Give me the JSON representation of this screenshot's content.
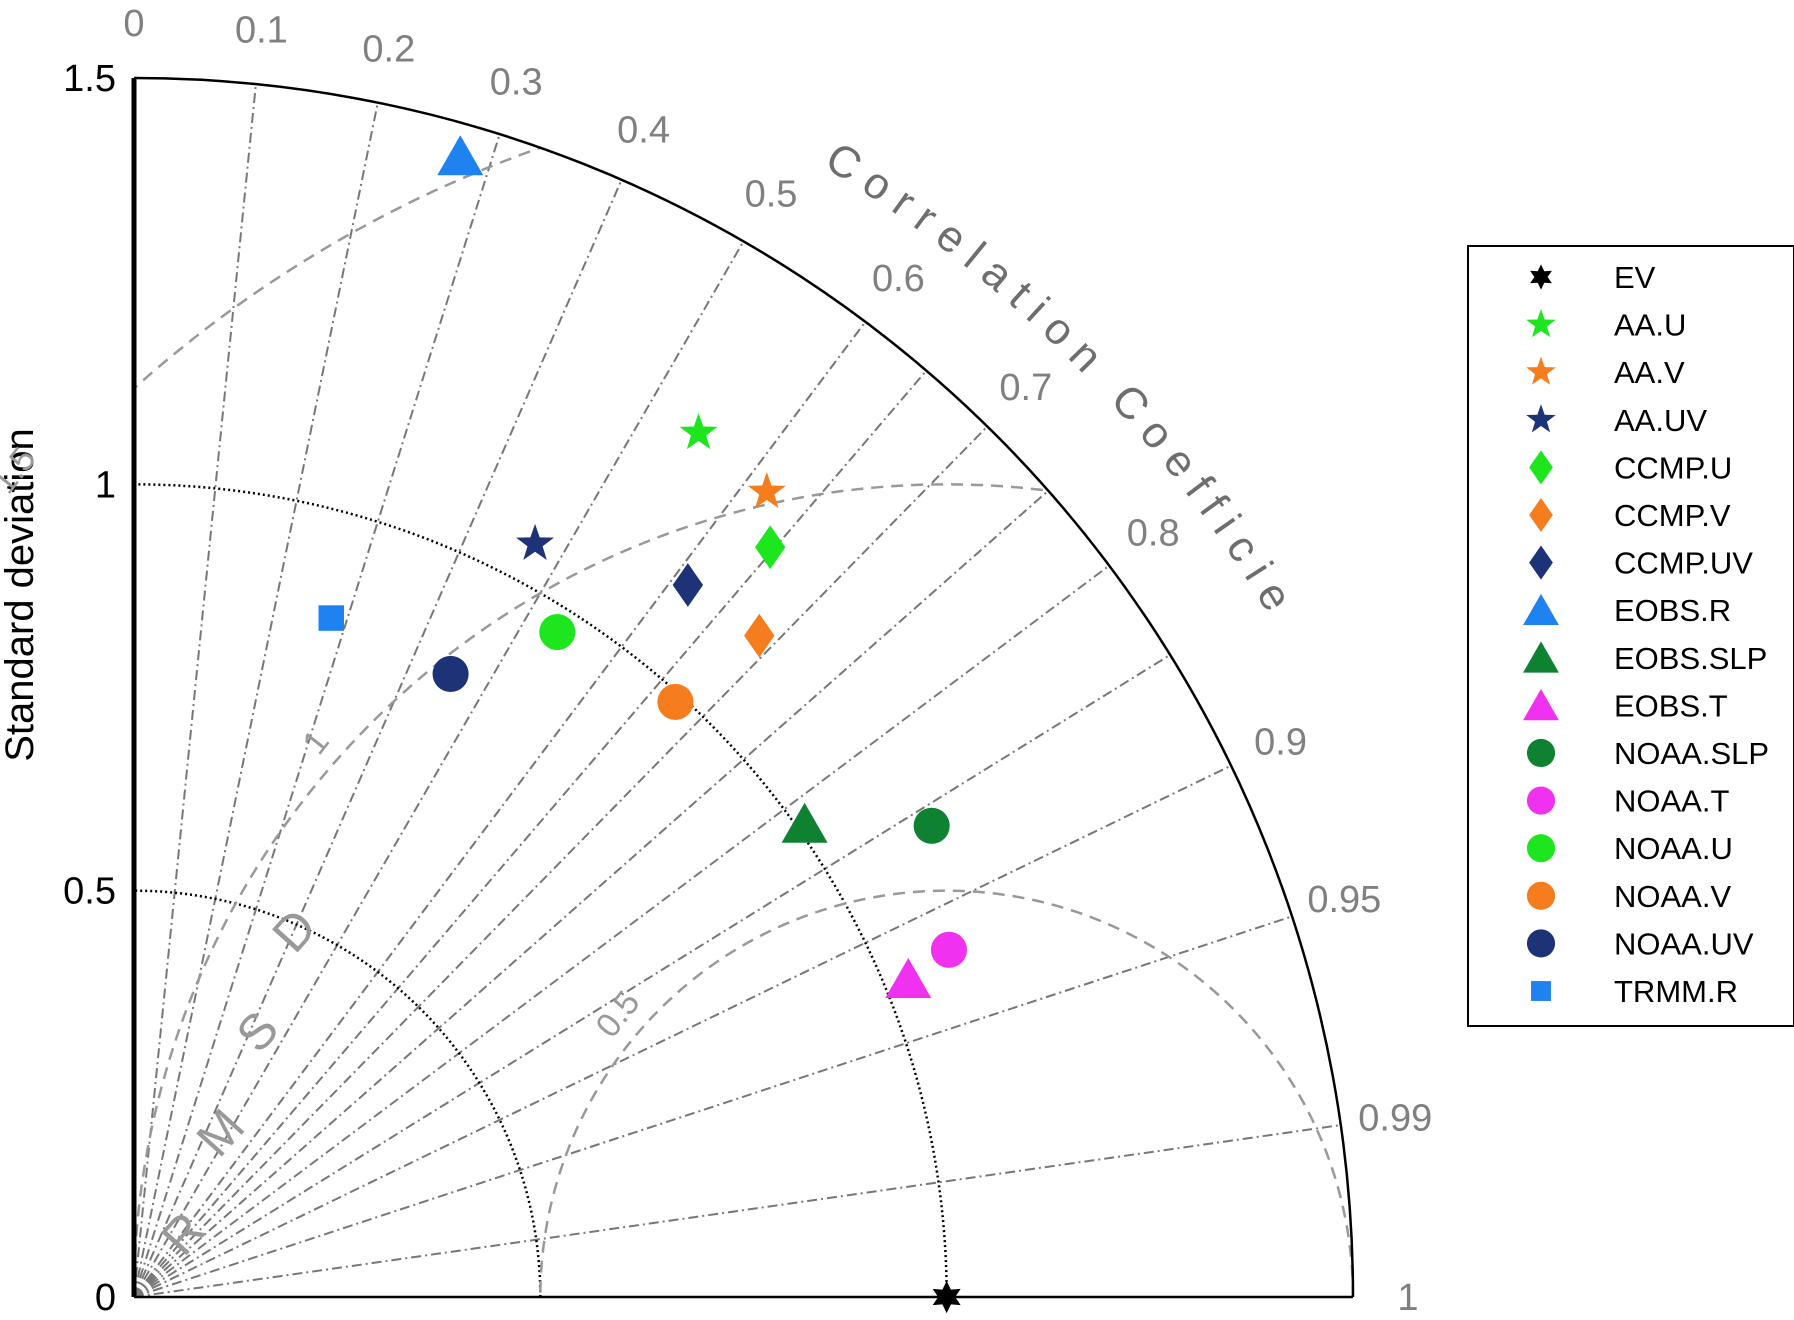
{
  "chart_data": {
    "type": "taylor-diagram",
    "ylabel": "Standard deviation",
    "correlation_label": "Correlation Coefficient",
    "rmsd_label": "RMSD",
    "std_ticks": [
      "0",
      "0.5",
      "1",
      "1.5"
    ],
    "std_tick_values": [
      0,
      0.5,
      1,
      1.5
    ],
    "std_max": 1.5,
    "reference_std": 1.0,
    "std_arcs": [
      0.5,
      1.0
    ],
    "correlation_ticks": [
      "0",
      "0.1",
      "0.2",
      "0.3",
      "0.4",
      "0.5",
      "0.6",
      "0.7",
      "0.8",
      "0.9",
      "0.95",
      "0.99",
      "1"
    ],
    "correlation_tick_values": [
      0,
      0.1,
      0.2,
      0.3,
      0.4,
      0.5,
      0.6,
      0.7,
      0.8,
      0.9,
      0.95,
      0.99,
      1
    ],
    "correlation_minor_lines": [
      0.65,
      0.75,
      0.85
    ],
    "rmsd_ticks": [
      "0.5",
      "1",
      "1.5"
    ],
    "rmsd_tick_values": [
      0.5,
      1.0,
      1.5
    ],
    "series": [
      {
        "name": "EV",
        "marker": "hexstar",
        "color": "#000000",
        "std": 1.0,
        "corr": 1.0
      },
      {
        "name": "AA.U",
        "marker": "star",
        "color": "#1ee61e",
        "std": 1.27,
        "corr": 0.547
      },
      {
        "name": "AA.V",
        "marker": "star",
        "color": "#f57d1e",
        "std": 1.26,
        "corr": 0.618
      },
      {
        "name": "AA.UV",
        "marker": "star",
        "color": "#1e3278",
        "std": 1.05,
        "corr": 0.47
      },
      {
        "name": "CCMP.U",
        "marker": "diamond",
        "color": "#1ee61e",
        "std": 1.21,
        "corr": 0.647
      },
      {
        "name": "CCMP.V",
        "marker": "diamond",
        "color": "#f57d1e",
        "std": 1.12,
        "corr": 0.687
      },
      {
        "name": "CCMP.UV",
        "marker": "diamond",
        "color": "#1e3278",
        "std": 1.11,
        "corr": 0.614
      },
      {
        "name": "EOBS.R",
        "marker": "triangle",
        "color": "#1e82f0",
        "std": 1.46,
        "corr": 0.275
      },
      {
        "name": "EOBS.SLP",
        "marker": "triangle",
        "color": "#0f8232",
        "std": 1.01,
        "corr": 0.817
      },
      {
        "name": "EOBS.T",
        "marker": "triangle",
        "color": "#f032f0",
        "std": 1.03,
        "corr": 0.925
      },
      {
        "name": "NOAA.SLP",
        "marker": "circle",
        "color": "#0f8232",
        "std": 1.14,
        "corr": 0.861
      },
      {
        "name": "NOAA.T",
        "marker": "circle",
        "color": "#f032f0",
        "std": 1.09,
        "corr": 0.92
      },
      {
        "name": "NOAA.U",
        "marker": "circle",
        "color": "#1ee61e",
        "std": 0.97,
        "corr": 0.537
      },
      {
        "name": "NOAA.V",
        "marker": "circle",
        "color": "#f57d1e",
        "std": 0.99,
        "corr": 0.673
      },
      {
        "name": "NOAA.UV",
        "marker": "circle",
        "color": "#1e3278",
        "std": 0.86,
        "corr": 0.453
      },
      {
        "name": "TRMM.R",
        "marker": "square",
        "color": "#1e82f0",
        "std": 0.87,
        "corr": 0.279
      }
    ],
    "legend_position": "right",
    "colors": {
      "axis": "#000000",
      "grid_lines": "#777777",
      "rmsd_arcs": "#999999",
      "std_arcs": "#000000"
    }
  }
}
